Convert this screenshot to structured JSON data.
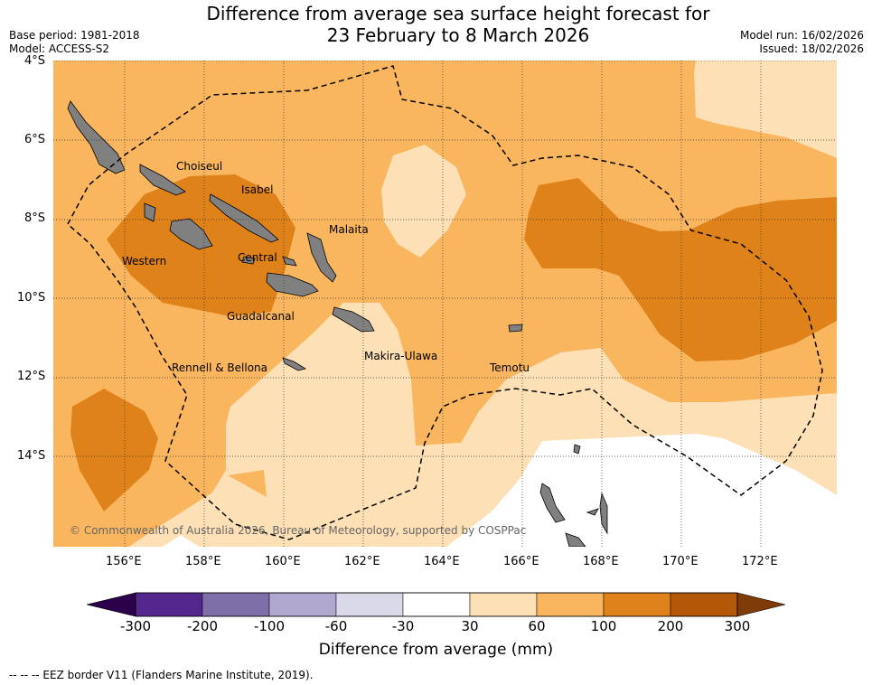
{
  "title_line1": "Difference from average sea surface height forecast for",
  "title_line2": "23 February to 8 March 2026",
  "base_period": "Base period: 1981-2018",
  "model": "Model: ACCESS-S2",
  "model_run": "Model run: 16/02/2026",
  "issued": "Issued: 18/02/2026",
  "lat_ticks": [
    "4°S",
    "6°S",
    "8°S",
    "10°S",
    "12°S",
    "14°S"
  ],
  "lon_ticks": [
    "156°E",
    "158°E",
    "160°E",
    "162°E",
    "164°E",
    "166°E",
    "168°E",
    "170°E",
    "172°E"
  ],
  "places": [
    "Choiseul",
    "Isabel",
    "Malaita",
    "Western",
    "Central",
    "Guadalcanal",
    "Makira-Ulawa",
    "Rennell & Bellona",
    "Temotu"
  ],
  "copyright": "© Commonwealth of Australia 2026, Bureau of Meteorology, supported by COSPPac",
  "colorbar": {
    "label": "Difference from average (mm)",
    "ticks": [
      "-300",
      "-200",
      "-100",
      "-60",
      "-30",
      "30",
      "60",
      "100",
      "200",
      "300"
    ],
    "colors": [
      "#54278f",
      "#7f6fa9",
      "#b0a8cf",
      "#d9d9ea",
      "#ffffff",
      "#fde0b5",
      "#f9b65f",
      "#e0821a",
      "#b35806"
    ],
    "under_color": "#2d004b",
    "over_color": "#7f3b08"
  },
  "footer": "--  --  -- EEZ border V11 (Flanders Marine Institute, 2019)."
}
